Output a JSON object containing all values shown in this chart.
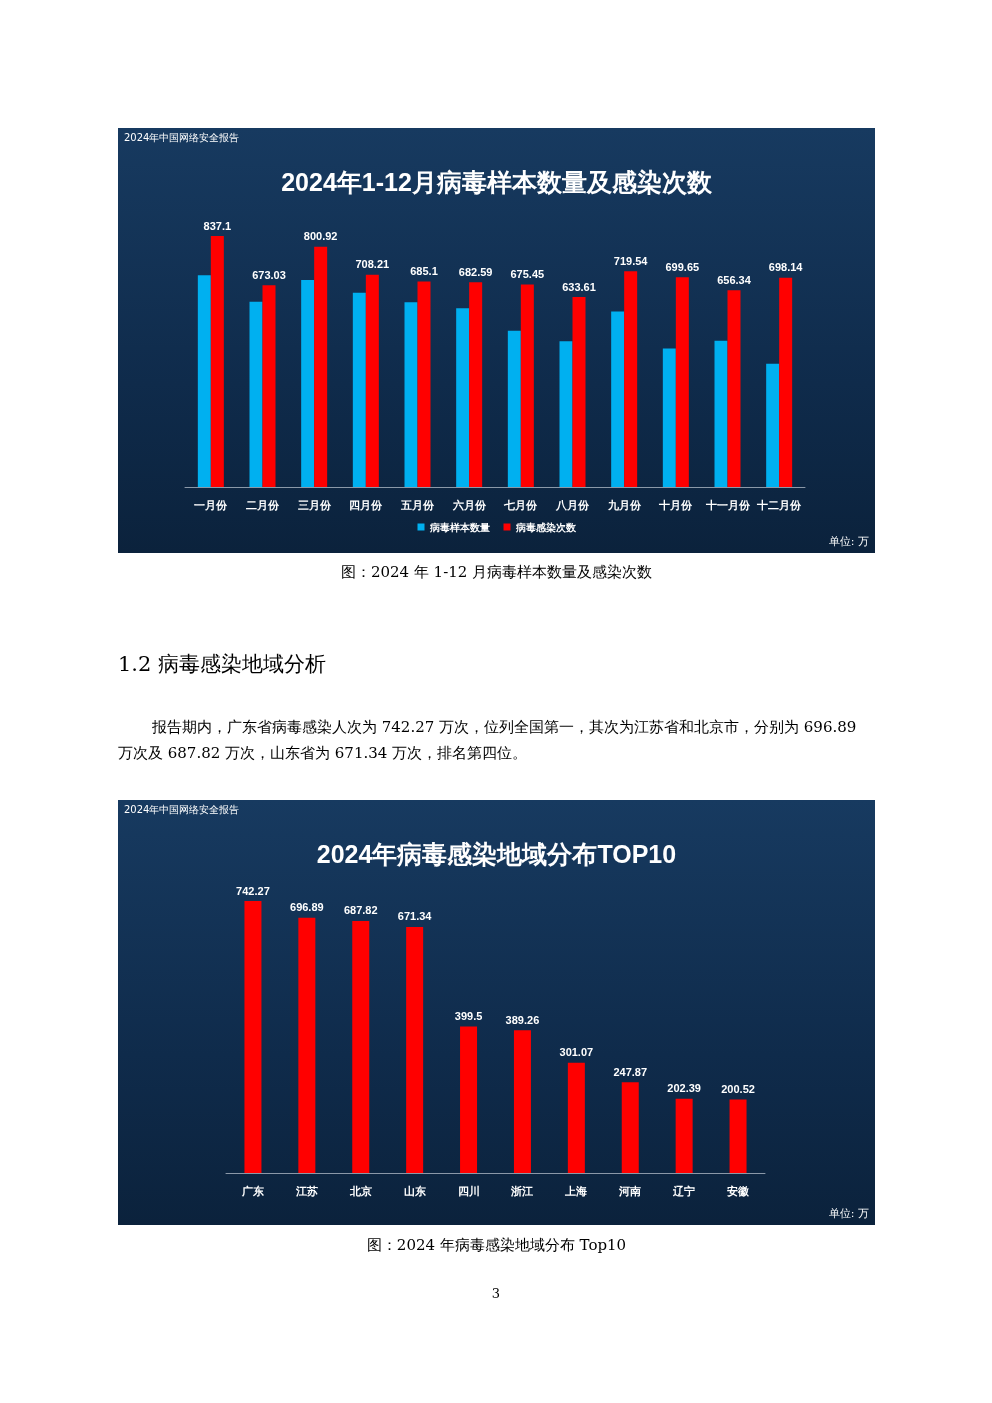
{
  "chart_data": [
    {
      "type": "bar",
      "title": "2024年1-12月病毒样本数量及感染次数",
      "categories": [
        "一月份",
        "二月份",
        "三月份",
        "四月份",
        "五月份",
        "六月份",
        "七月份",
        "八月份",
        "九月份",
        "十月份",
        "十一月份",
        "十二月份"
      ],
      "series": [
        {
          "name": "病毒样本数量",
          "color": "#00b0f0",
          "values": [
            706,
            618,
            690,
            648,
            616,
            596,
            521,
            486,
            585,
            462,
            488,
            411
          ]
        },
        {
          "name": "病毒感染次数",
          "color": "#ff0000",
          "values": [
            837.1,
            673.03,
            800.92,
            708.21,
            685.1,
            682.59,
            675.45,
            633.61,
            719.54,
            699.65,
            656.34,
            698.14
          ],
          "value_labels": [
            "837.1",
            "673.03",
            "800.92",
            "708.21",
            "685.1",
            "682.59",
            "675.45",
            "633.61",
            "719.54",
            "699.65",
            "656.34",
            "698.14"
          ]
        }
      ],
      "legend": "bottom",
      "grid": false,
      "annotations": [
        "2024年中国网络安全报告",
        "单位: 万",
        "图：2024 年 1-12 月病毒样本数量及感染次数"
      ]
    },
    {
      "type": "bar",
      "title": "2024年病毒感染地域分布TOP10",
      "categories": [
        "广东",
        "江苏",
        "北京",
        "山东",
        "四川",
        "浙江",
        "上海",
        "河南",
        "辽宁",
        "安徽"
      ],
      "values": [
        742.27,
        696.89,
        687.82,
        671.34,
        399.5,
        389.26,
        301.07,
        247.87,
        202.39,
        200.52
      ],
      "color": "#ff0000",
      "data_labels": true,
      "legend": false,
      "grid": false,
      "annotations": [
        "2024年中国网络安全报告",
        "单位: 万",
        "图：2024 年病毒感染地域分布 Top10",
        "1.2 病毒感染地域分析",
        "报告期内，广东省病毒感染人次为 742.27 万次，位列全国第一，其次为江苏省和北京市，分别为 696.89 万次及 687.82 万次，山东省为 671.34 万次，排名第四位。",
        "3"
      ]
    }
  ]
}
